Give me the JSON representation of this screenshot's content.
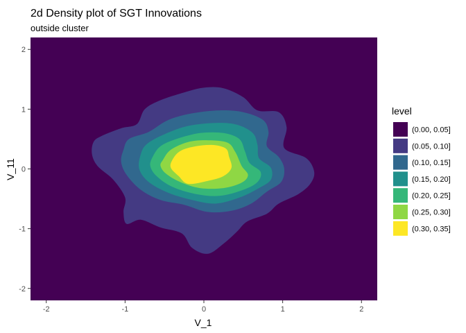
{
  "chart_data": {
    "type": "heatmap",
    "subtype": "filled-density-contour",
    "title": "2d Density plot of SGT Innovations",
    "subtitle": "outside cluster",
    "xlabel": "V_1",
    "ylabel": "V_11",
    "xlim": [
      -2.2,
      2.2
    ],
    "ylim": [
      -2.2,
      2.2
    ],
    "xticks": [
      -2,
      -1,
      0,
      1,
      2
    ],
    "yticks": [
      -2,
      -1,
      0,
      1,
      2
    ],
    "grid": false,
    "legend": {
      "title": "level",
      "position": "right",
      "entries": [
        {
          "label": "(0.00, 0.05]",
          "color": "#440154"
        },
        {
          "label": "(0.05, 0.10]",
          "color": "#443A83"
        },
        {
          "label": "(0.10, 0.15]",
          "color": "#31688E"
        },
        {
          "label": "(0.15, 0.20]",
          "color": "#21908C"
        },
        {
          "label": "(0.20, 0.25]",
          "color": "#35B779"
        },
        {
          "label": "(0.25, 0.30]",
          "color": "#8FD744"
        },
        {
          "label": "(0.30, 0.35]",
          "color": "#FDE725"
        }
      ]
    },
    "contours": [
      {
        "level": "(0.05, 0.10]",
        "points": [
          [
            -1.4,
            0.45
          ],
          [
            -1.3,
            0.55
          ],
          [
            -1.05,
            0.68
          ],
          [
            -0.85,
            0.75
          ],
          [
            -0.75,
            1.0
          ],
          [
            -0.55,
            1.15
          ],
          [
            -0.25,
            1.28
          ],
          [
            0.0,
            1.36
          ],
          [
            0.25,
            1.35
          ],
          [
            0.5,
            1.2
          ],
          [
            0.68,
            0.98
          ],
          [
            0.95,
            0.95
          ],
          [
            1.05,
            0.7
          ],
          [
            1.02,
            0.35
          ],
          [
            1.3,
            0.18
          ],
          [
            1.4,
            -0.05
          ],
          [
            1.35,
            -0.25
          ],
          [
            1.2,
            -0.42
          ],
          [
            0.95,
            -0.58
          ],
          [
            0.8,
            -0.75
          ],
          [
            0.55,
            -0.88
          ],
          [
            0.42,
            -1.05
          ],
          [
            0.25,
            -1.25
          ],
          [
            0.05,
            -1.42
          ],
          [
            -0.15,
            -1.32
          ],
          [
            -0.28,
            -1.08
          ],
          [
            -0.55,
            -0.98
          ],
          [
            -0.8,
            -0.85
          ],
          [
            -0.98,
            -0.92
          ],
          [
            -1.02,
            -0.72
          ],
          [
            -1.0,
            -0.48
          ],
          [
            -1.15,
            -0.18
          ],
          [
            -1.35,
            0.05
          ],
          [
            -1.42,
            0.25
          ]
        ]
      },
      {
        "level": "(0.10, 0.15]",
        "points": [
          [
            -1.02,
            0.32
          ],
          [
            -0.95,
            0.5
          ],
          [
            -0.7,
            0.62
          ],
          [
            -0.45,
            0.82
          ],
          [
            -0.15,
            0.93
          ],
          [
            0.2,
            0.98
          ],
          [
            0.5,
            0.95
          ],
          [
            0.75,
            0.82
          ],
          [
            0.82,
            0.62
          ],
          [
            0.8,
            0.38
          ],
          [
            0.95,
            0.2
          ],
          [
            1.02,
            0.0
          ],
          [
            0.98,
            -0.22
          ],
          [
            0.8,
            -0.38
          ],
          [
            0.6,
            -0.58
          ],
          [
            0.35,
            -0.7
          ],
          [
            0.05,
            -0.72
          ],
          [
            -0.25,
            -0.6
          ],
          [
            -0.55,
            -0.52
          ],
          [
            -0.8,
            -0.35
          ],
          [
            -0.98,
            -0.1
          ],
          [
            -1.05,
            0.12
          ]
        ]
      },
      {
        "level": "(0.15, 0.20]",
        "points": [
          [
            -0.8,
            0.25
          ],
          [
            -0.72,
            0.42
          ],
          [
            -0.5,
            0.58
          ],
          [
            -0.2,
            0.72
          ],
          [
            0.15,
            0.77
          ],
          [
            0.42,
            0.74
          ],
          [
            0.62,
            0.6
          ],
          [
            0.68,
            0.4
          ],
          [
            0.7,
            0.18
          ],
          [
            0.85,
            0.02
          ],
          [
            0.85,
            -0.18
          ],
          [
            0.7,
            -0.32
          ],
          [
            0.45,
            -0.48
          ],
          [
            0.15,
            -0.58
          ],
          [
            -0.15,
            -0.52
          ],
          [
            -0.45,
            -0.4
          ],
          [
            -0.7,
            -0.22
          ],
          [
            -0.82,
            0.0
          ]
        ]
      },
      {
        "level": "(0.20, 0.25]",
        "points": [
          [
            -0.65,
            0.2
          ],
          [
            -0.55,
            0.38
          ],
          [
            -0.35,
            0.5
          ],
          [
            -0.05,
            0.6
          ],
          [
            0.25,
            0.6
          ],
          [
            0.45,
            0.5
          ],
          [
            0.52,
            0.3
          ],
          [
            0.58,
            0.1
          ],
          [
            0.72,
            -0.05
          ],
          [
            0.68,
            -0.22
          ],
          [
            0.5,
            -0.35
          ],
          [
            0.2,
            -0.45
          ],
          [
            -0.1,
            -0.42
          ],
          [
            -0.4,
            -0.3
          ],
          [
            -0.6,
            -0.12
          ],
          [
            -0.68,
            0.05
          ]
        ]
      },
      {
        "level": "(0.25, 0.30]",
        "points": [
          [
            -0.52,
            0.15
          ],
          [
            -0.42,
            0.32
          ],
          [
            -0.2,
            0.45
          ],
          [
            0.05,
            0.48
          ],
          [
            0.3,
            0.44
          ],
          [
            0.4,
            0.28
          ],
          [
            0.48,
            0.05
          ],
          [
            0.56,
            -0.1
          ],
          [
            0.48,
            -0.23
          ],
          [
            0.25,
            -0.32
          ],
          [
            -0.05,
            -0.32
          ],
          [
            -0.3,
            -0.22
          ],
          [
            -0.48,
            -0.08
          ],
          [
            -0.55,
            0.05
          ]
        ]
      },
      {
        "level": "(0.30, 0.35]",
        "points": [
          [
            -0.4,
            0.15
          ],
          [
            -0.3,
            0.3
          ],
          [
            -0.1,
            0.38
          ],
          [
            0.12,
            0.4
          ],
          [
            0.28,
            0.34
          ],
          [
            0.32,
            0.2
          ],
          [
            0.35,
            0.02
          ],
          [
            0.25,
            -0.12
          ],
          [
            0.05,
            -0.2
          ],
          [
            -0.2,
            -0.25
          ],
          [
            -0.32,
            -0.12
          ],
          [
            -0.42,
            0.02
          ]
        ]
      }
    ]
  }
}
